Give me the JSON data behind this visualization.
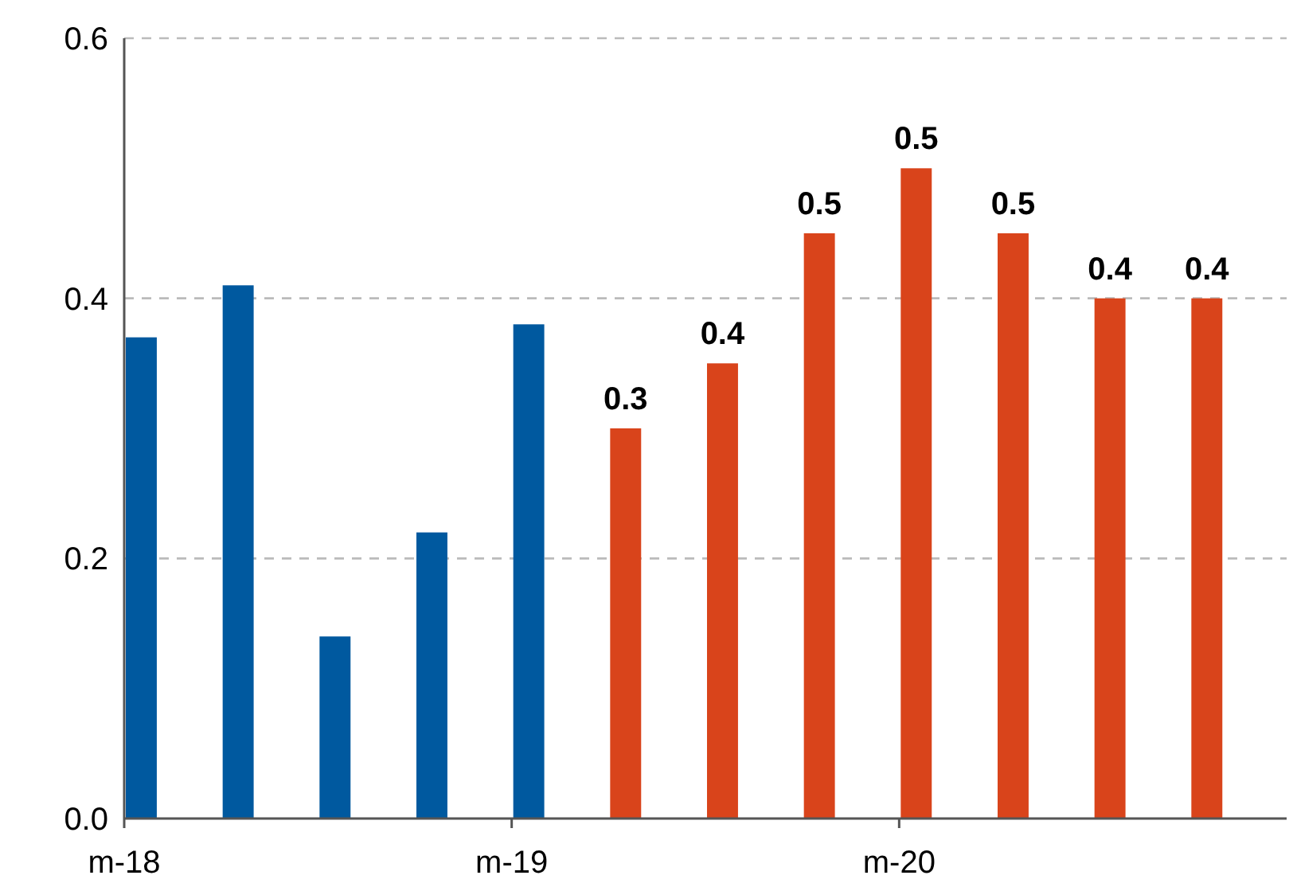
{
  "chart_data": {
    "type": "bar",
    "categories": [
      "m-18",
      null,
      null,
      null,
      "m-19",
      null,
      null,
      null,
      "m-20",
      null,
      null,
      null
    ],
    "values": [
      0.37,
      0.41,
      0.14,
      0.22,
      0.38,
      0.3,
      0.35,
      0.45,
      0.5,
      0.45,
      0.4,
      0.4
    ],
    "colors": [
      "#00599f",
      "#00599f",
      "#00599f",
      "#00599f",
      "#00599f",
      "#d9441b",
      "#d9441b",
      "#d9441b",
      "#d9441b",
      "#d9441b",
      "#d9441b",
      "#d9441b"
    ],
    "value_labels": [
      null,
      null,
      null,
      null,
      null,
      "0.3",
      "0.4",
      "0.5",
      "0.5",
      "0.5",
      "0.4",
      "0.4"
    ],
    "ylim": [
      0,
      0.6
    ],
    "yticks": [
      {
        "value": 0,
        "label": "0.0"
      },
      {
        "value": 0.2,
        "label": "0.2"
      },
      {
        "value": 0.4,
        "label": "0.4"
      },
      {
        "value": 0.6,
        "label": "0.6"
      }
    ],
    "grid": "y"
  }
}
